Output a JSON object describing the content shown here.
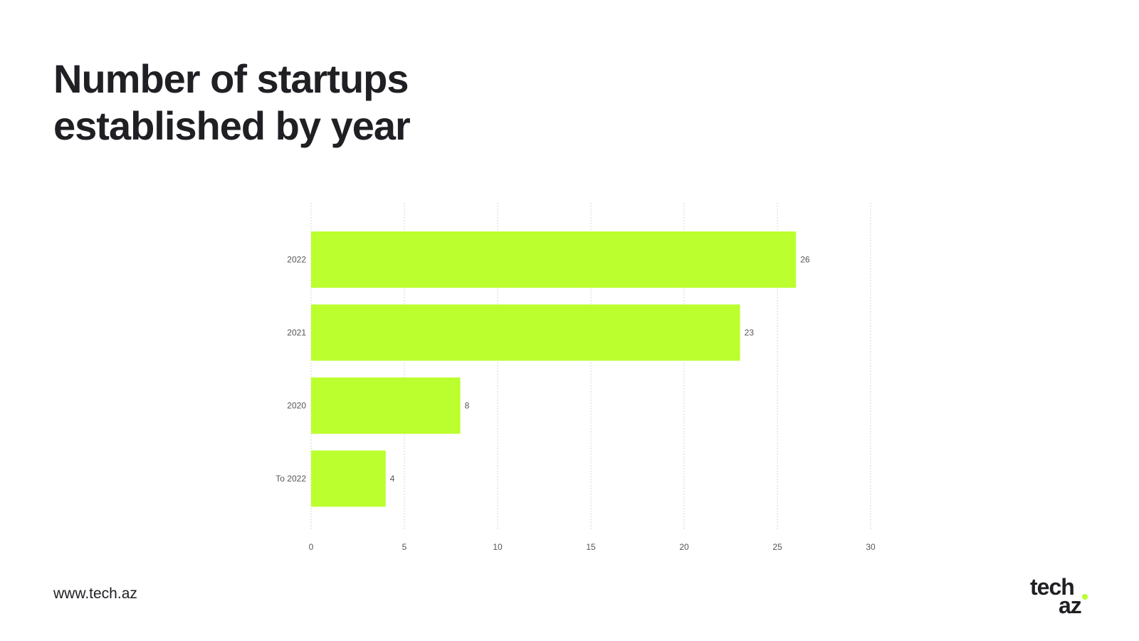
{
  "title_lines": [
    "Number of startups",
    "established by year"
  ],
  "footer": {
    "url": "www.tech.az"
  },
  "logo": {
    "line1": "tech",
    "line2": "az",
    "dot_color": "#b8ff2e"
  },
  "colors": {
    "bar": "#bbff2e",
    "text": "#1f1f24",
    "grid": "#c8c8c8",
    "label": "#555555"
  },
  "chart_data": {
    "type": "bar",
    "orientation": "horizontal",
    "categories": [
      "2022",
      "2021",
      "2020",
      "To 2022"
    ],
    "values": [
      26,
      23,
      8,
      4
    ],
    "xlim": [
      0,
      30
    ],
    "xticks": [
      0,
      5,
      10,
      15,
      20,
      25,
      30
    ],
    "grid": true,
    "data_labels": true,
    "title": "Number of startups established by year",
    "xlabel": "",
    "ylabel": ""
  }
}
